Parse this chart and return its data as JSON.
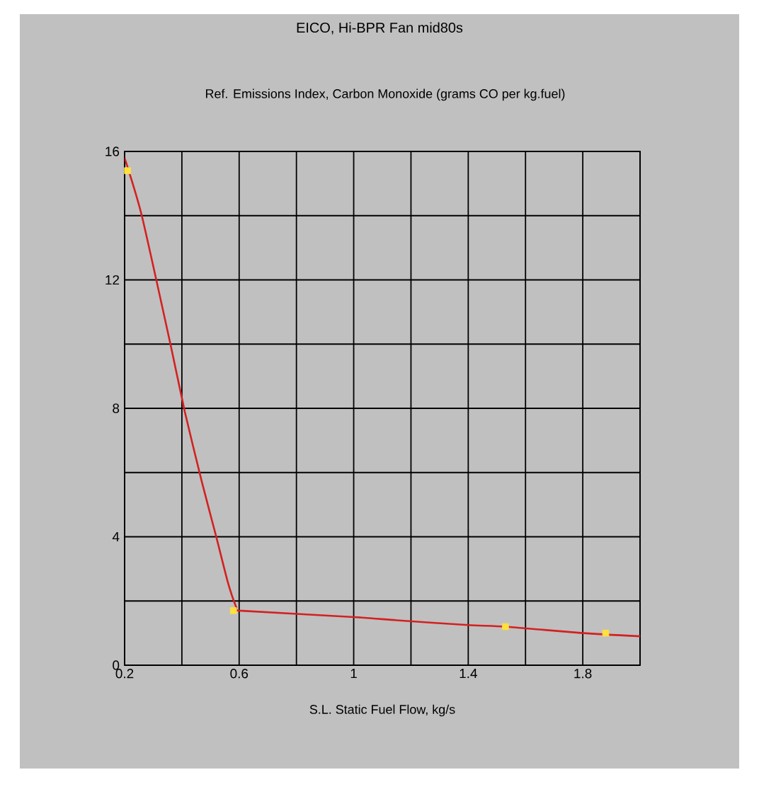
{
  "chart_data": {
    "type": "line",
    "title": "EICO, Hi-BPR Fan mid80s",
    "subtitle": "Ref. Emissions Index, Carbon Monoxide (grams CO per kg.fuel)",
    "xlabel": "S.L. Static Fuel Flow, kg/s",
    "series": [
      {
        "color": "#d42020",
        "marker": "none",
        "x": [
          0.2,
          0.26,
          0.36,
          0.41,
          0.47,
          0.52,
          0.56,
          0.59,
          0.6,
          1.0,
          1.15,
          1.4,
          1.53,
          1.8,
          2.0
        ],
        "values": [
          15.8,
          14.0,
          10.0,
          7.9,
          5.7,
          4.0,
          2.6,
          1.8,
          1.7,
          1.5,
          1.4,
          1.25,
          1.2,
          1.0,
          0.9
        ]
      },
      {
        "type": "scatter",
        "color": "#ffe040",
        "marker": "square",
        "x": [
          0.21,
          0.58,
          1.53,
          1.88
        ],
        "values": [
          15.4,
          1.7,
          1.2,
          1.0
        ]
      }
    ],
    "xlim": [
      0.2,
      2.0
    ],
    "ylim": [
      0,
      16
    ],
    "xticks": [
      0.2,
      {
        "value": 0.4,
        "label": null
      },
      0.6,
      {
        "value": 0.8,
        "label": null
      },
      1,
      {
        "value": 1.2,
        "label": null
      },
      1.4,
      {
        "value": 1.6,
        "label": null
      },
      1.8,
      {
        "value": 2.0,
        "label": null
      }
    ],
    "yticks": [
      0,
      {
        "value": 2,
        "label": null
      },
      4,
      {
        "value": 6,
        "label": null
      },
      8,
      {
        "value": 10,
        "label": null
      },
      12,
      {
        "value": 14,
        "label": null
      },
      16
    ],
    "grid": true
  }
}
